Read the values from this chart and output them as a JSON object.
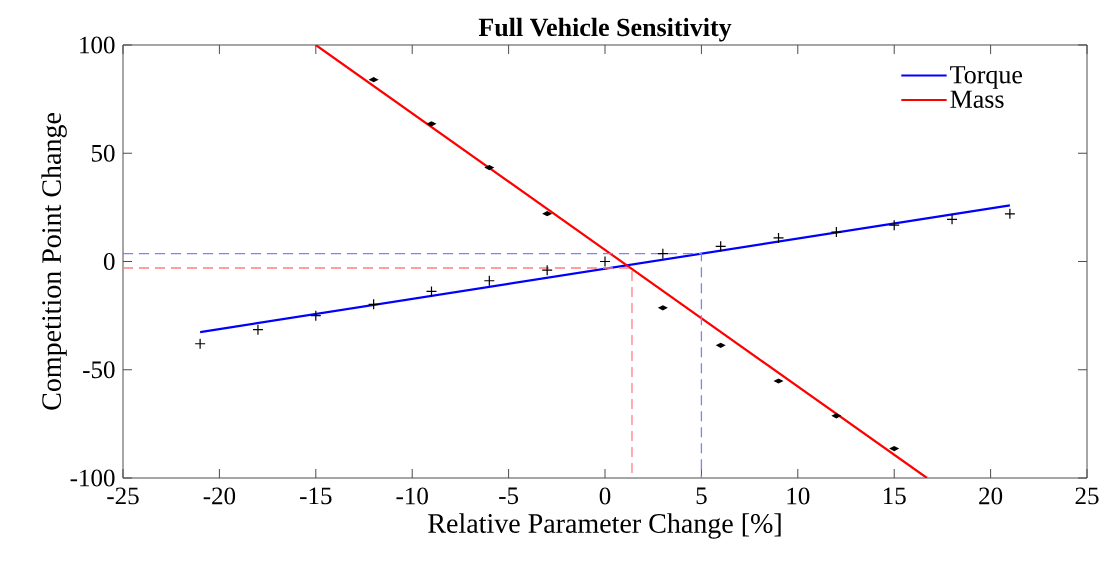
{
  "chart_data": {
    "type": "line",
    "title": "Full Vehicle Sensitivity",
    "xlabel": "Relative Parameter Change [%]",
    "ylabel": "Competition Point Change",
    "xlim": [
      -25,
      25
    ],
    "ylim": [
      -100,
      100
    ],
    "xticks": [
      -25,
      -20,
      -15,
      -10,
      -5,
      0,
      5,
      10,
      15,
      20,
      25
    ],
    "yticks": [
      -100,
      -50,
      0,
      50,
      100
    ],
    "legend": "top right",
    "grid": false,
    "series": [
      {
        "type": "scatter",
        "color": "#000000",
        "marker": "cross",
        "x": [
          -21,
          -18,
          -15,
          -12,
          -9,
          -6,
          -3,
          0,
          3,
          6,
          9,
          12,
          15,
          18,
          21
        ],
        "values": [
          -38,
          -31.5,
          -25,
          -19.8,
          -13.8,
          -8.9,
          -4,
          0,
          3.6,
          7,
          10.9,
          13.6,
          16.8,
          19.5,
          22
        ]
      },
      {
        "type": "scatter",
        "color": "#000000",
        "marker": "diamond",
        "x": [
          -12,
          -9,
          -6,
          -3,
          3,
          6,
          9,
          12,
          15
        ],
        "values": [
          84,
          63.6,
          43.4,
          22.1,
          -21.4,
          -38.7,
          -55.2,
          -71.3,
          -86.4
        ]
      },
      {
        "name": "Torque",
        "color": "#0000ff",
        "x": [
          -21,
          21
        ],
        "values": [
          -32.6,
          25.9
        ]
      },
      {
        "name": "Mass",
        "color": "#ff0000",
        "x": [
          -15,
          16.7
        ],
        "values": [
          100,
          -100
        ]
      },
      {
        "color": "#8080ff",
        "line_style": "dashed",
        "x": [
          -25,
          5,
          5
        ],
        "values": [
          3.6,
          3.6,
          -100
        ]
      },
      {
        "color": "#ff8080",
        "line_style": "dashed",
        "x": [
          -25,
          1.4,
          1.4
        ],
        "values": [
          -3,
          -3,
          -100
        ]
      }
    ]
  }
}
